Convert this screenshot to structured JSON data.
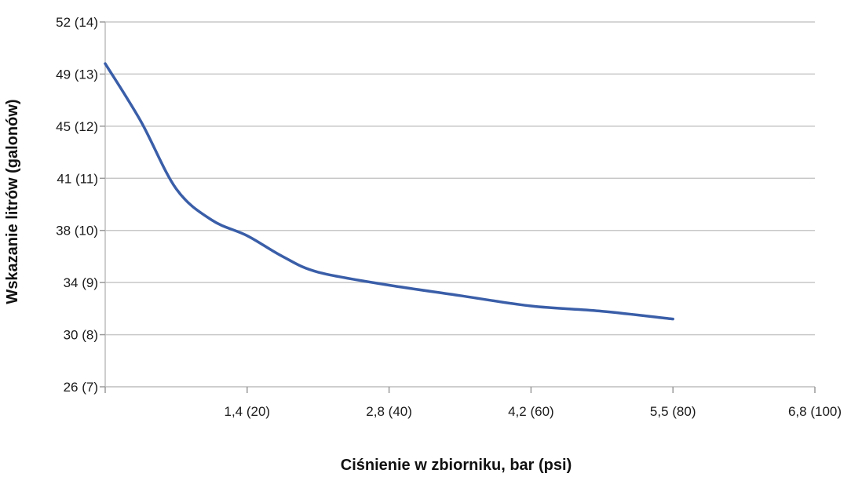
{
  "chart_data": {
    "type": "line",
    "title": "",
    "xlabel": "Ciśnienie w zbiorniku, bar (psi)",
    "ylabel": "Wskazanie litrów (galonów)",
    "x_ticks": [
      {
        "value": 0,
        "label": ""
      },
      {
        "value": 20,
        "label": "1,4 (20)"
      },
      {
        "value": 40,
        "label": "2,8 (40)"
      },
      {
        "value": 60,
        "label": "4,2 (60)"
      },
      {
        "value": 80,
        "label": "5,5 (80)"
      },
      {
        "value": 100,
        "label": "6,8 (100)"
      }
    ],
    "y_ticks": [
      {
        "value": 7,
        "label": "26 (7)"
      },
      {
        "value": 8,
        "label": "30 (8)"
      },
      {
        "value": 9,
        "label": "34 (9)"
      },
      {
        "value": 10,
        "label": "38 (10)"
      },
      {
        "value": 11,
        "label": "41 (11)"
      },
      {
        "value": 12,
        "label": "45 (12)"
      },
      {
        "value": 13,
        "label": "49 (13)"
      },
      {
        "value": 14,
        "label": "52 (14)"
      }
    ],
    "xlim": [
      0,
      100
    ],
    "ylim": [
      7,
      14
    ],
    "grid": true,
    "series": [
      {
        "color": "#3a5ea8",
        "points": [
          [
            0,
            13.2
          ],
          [
            5,
            12.1
          ],
          [
            10,
            10.8
          ],
          [
            15,
            10.2
          ],
          [
            20,
            9.9
          ],
          [
            25,
            9.5
          ],
          [
            30,
            9.2
          ],
          [
            40,
            8.95
          ],
          [
            50,
            8.75
          ],
          [
            60,
            8.55
          ],
          [
            70,
            8.45
          ],
          [
            80,
            8.3
          ]
        ]
      }
    ]
  }
}
